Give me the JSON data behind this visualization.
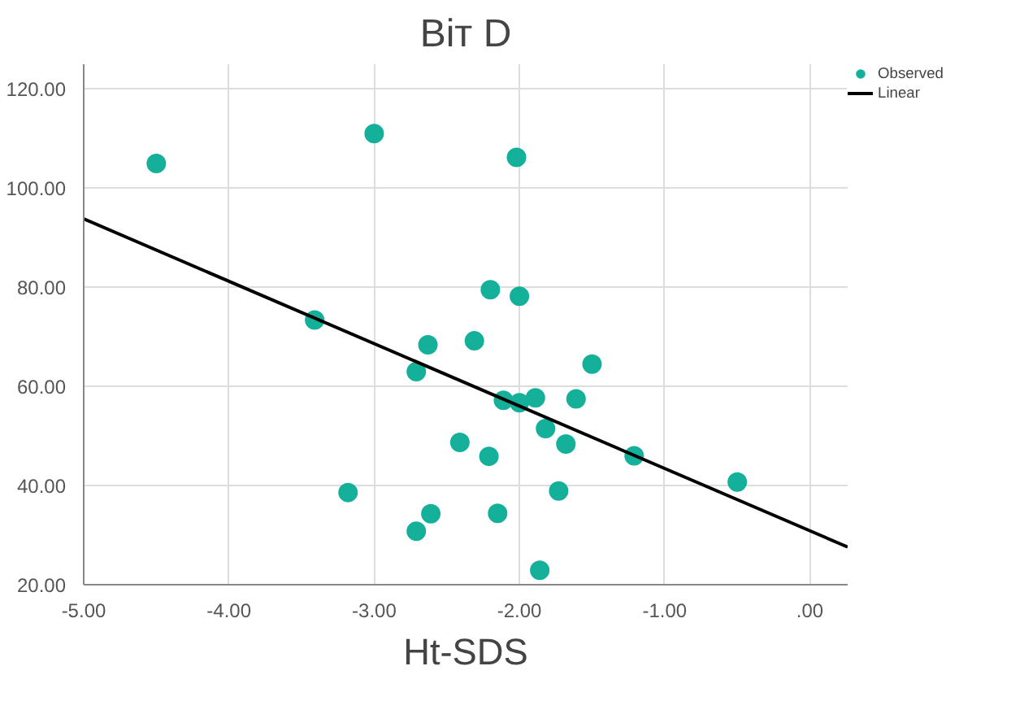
{
  "chart_data": {
    "type": "scatter",
    "title": "Віт D",
    "xlabel": "Ht-SDS",
    "xlim": [
      -5,
      0.26
    ],
    "ylim": [
      20,
      125
    ],
    "xticks": [
      {
        "value": -5,
        "label": "-5.00"
      },
      {
        "value": -4,
        "label": "-4.00"
      },
      {
        "value": -3,
        "label": "-3.00"
      },
      {
        "value": -2,
        "label": "-2.00"
      },
      {
        "value": -1,
        "label": "-1.00"
      },
      {
        "value": 0,
        "label": ".00"
      }
    ],
    "yticks": [
      {
        "value": 20,
        "label": "20.00"
      },
      {
        "value": 40,
        "label": "40.00"
      },
      {
        "value": 60,
        "label": "60.00"
      },
      {
        "value": 80,
        "label": "80.00"
      },
      {
        "value": 100,
        "label": "100.00"
      },
      {
        "value": 120,
        "label": "120.00"
      }
    ],
    "grid": true,
    "legend": "top right",
    "series": [
      {
        "name": "Observed",
        "marker": "circle",
        "color": "#14b09a",
        "x": [
          -4.5,
          -3.0,
          -3.41,
          -2.2,
          -2.63,
          -2.31,
          -2.02,
          -2.0,
          -2.71,
          -2.41,
          -2.21,
          -3.18,
          -2.61,
          -2.71,
          -2.15,
          -1.5,
          -2.11,
          -2.0,
          -1.89,
          -1.61,
          -1.82,
          -1.68,
          -1.21,
          -0.5,
          -1.73,
          -1.86
        ],
        "values": [
          105,
          111,
          73.4,
          79.5,
          68.4,
          69.2,
          106.2,
          78.2,
          63,
          48.7,
          45.9,
          38.6,
          34.3,
          30.8,
          34.4,
          64.5,
          57.2,
          56.7,
          57.7,
          57.5,
          51.5,
          48.4,
          46,
          40.7,
          38.9,
          22.9
        ]
      },
      {
        "name": "Linear",
        "type": "line",
        "color": "#000000",
        "x": [
          -5,
          0.26
        ],
        "values": [
          93.8,
          27.6
        ]
      }
    ]
  }
}
